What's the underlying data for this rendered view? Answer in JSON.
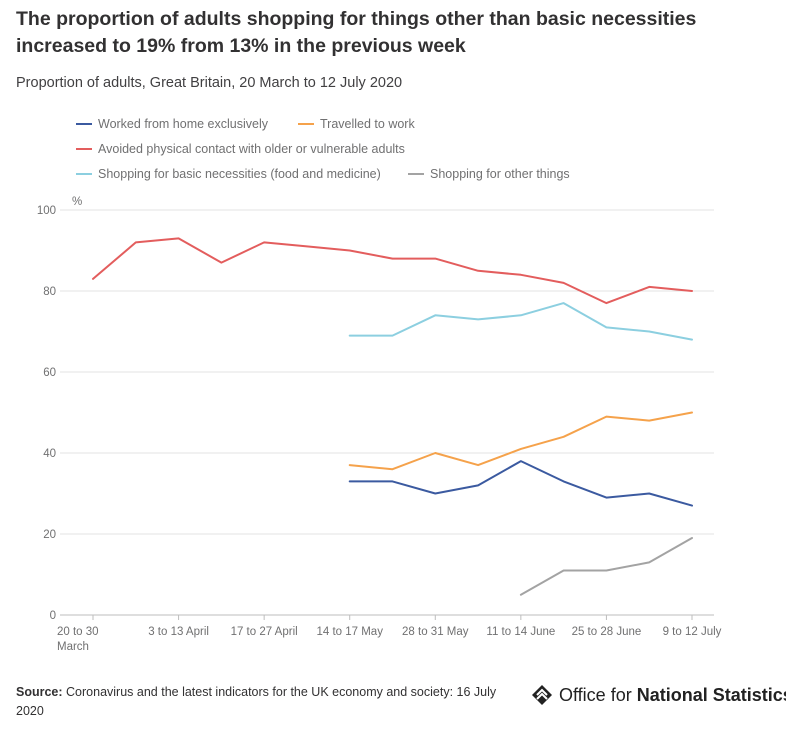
{
  "header": {
    "title": "The proportion of adults shopping for things other than basic necessities increased to 19% from 13% in the previous week",
    "subtitle": "Proportion of adults, Great Britain, 20 March to 12 July 2020"
  },
  "footer": {
    "source_label": "Source:",
    "source_text": "Coronavirus and the latest indicators for the UK economy and society: 16 July 2020",
    "logo_text_regular": "Office for ",
    "logo_text_bold": "National Statistics"
  },
  "chart_data": {
    "type": "line",
    "ylabel": "%",
    "ylim": [
      0,
      100
    ],
    "yticks": [
      0,
      20,
      40,
      60,
      80,
      100
    ],
    "grid": true,
    "legend_position": "top",
    "x_tick_labels": [
      {
        "index": 0,
        "lines": [
          "20 to 30",
          "March"
        ]
      },
      {
        "index": 2,
        "lines": [
          "3 to 13 April"
        ]
      },
      {
        "index": 4,
        "lines": [
          "17 to 27 April"
        ]
      },
      {
        "index": 6,
        "lines": [
          "14 to 17 May"
        ]
      },
      {
        "index": 8,
        "lines": [
          "28 to 31 May"
        ]
      },
      {
        "index": 10,
        "lines": [
          "11 to 14 June"
        ]
      },
      {
        "index": 12,
        "lines": [
          "25 to 28 June"
        ]
      },
      {
        "index": 14,
        "lines": [
          "9 to 12 July"
        ]
      }
    ],
    "series": [
      {
        "name": "Worked from home exclusively",
        "color": "#3b5aa0",
        "values": [
          null,
          null,
          null,
          null,
          null,
          null,
          33,
          33,
          30,
          32,
          38,
          33,
          29,
          30,
          27
        ]
      },
      {
        "name": "Travelled to work",
        "color": "#f5a24b",
        "values": [
          null,
          null,
          null,
          null,
          null,
          null,
          37,
          36,
          40,
          37,
          41,
          44,
          49,
          48,
          50
        ]
      },
      {
        "name": "Avoided physical contact with older or vulnerable adults",
        "color": "#e35d5d",
        "values": [
          83,
          92,
          93,
          87,
          92,
          91,
          90,
          88,
          88,
          85,
          84,
          82,
          77,
          81,
          80
        ]
      },
      {
        "name": "Shopping for basic necessities (food and medicine)",
        "color": "#8ccfe0",
        "values": [
          null,
          null,
          null,
          null,
          null,
          null,
          69,
          69,
          74,
          73,
          74,
          77,
          71,
          70,
          68
        ]
      },
      {
        "name": "Shopping for other things",
        "color": "#a3a3a3",
        "values": [
          null,
          null,
          null,
          null,
          null,
          null,
          null,
          null,
          null,
          null,
          5,
          11,
          11,
          13,
          19
        ]
      }
    ]
  }
}
